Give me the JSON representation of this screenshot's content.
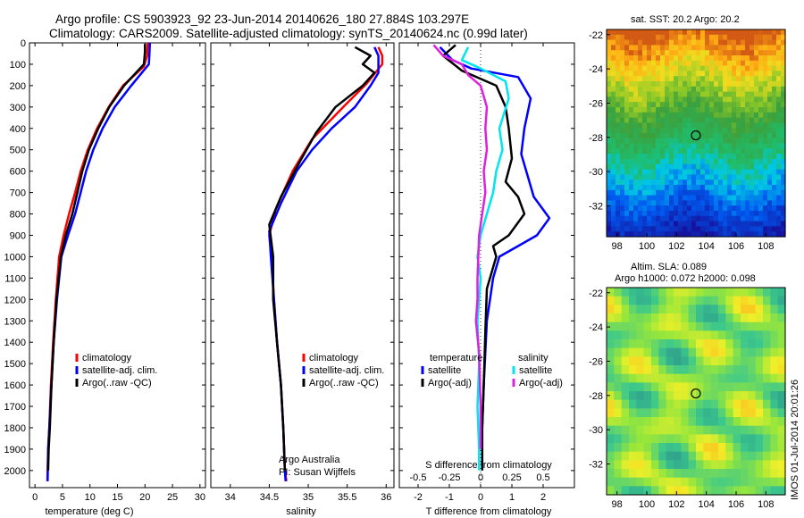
{
  "title": {
    "line1": "Argo profile: CS 5903923_92 23-Jun-2014 20140626_180 27.884S 103.297E",
    "line2": "Climatology: CARS2009. Satellite-adjusted climatology: synTS_20140624.nc (0.99d later)"
  },
  "colors": {
    "climatology": "#ff0000",
    "satellite": "#0000ff",
    "argo": "#000000",
    "satellite_s": "#00e5ee",
    "argo_s": "#e020e0"
  },
  "chart_data": [
    {
      "type": "line",
      "name": "temperature-profile",
      "xlabel": "temperature (deg C)",
      "xlim": [
        -1,
        31
      ],
      "xticks": [
        0,
        5,
        10,
        15,
        20,
        25,
        30
      ],
      "ylim": [
        0,
        2080
      ],
      "yticks": [
        0,
        100,
        200,
        300,
        400,
        500,
        600,
        700,
        800,
        900,
        1000,
        1100,
        1200,
        1300,
        1400,
        1500,
        1600,
        1700,
        1800,
        1900,
        2000
      ],
      "series": [
        {
          "name": "climatology",
          "color": "#ff0000",
          "points": [
            [
              20.5,
              0
            ],
            [
              20.4,
              60
            ],
            [
              19.8,
              110
            ],
            [
              16,
              200
            ],
            [
              13.4,
              300
            ],
            [
              11.3,
              400
            ],
            [
              9.6,
              500
            ],
            [
              8.3,
              600
            ],
            [
              7.3,
              700
            ],
            [
              6.2,
              800
            ],
            [
              5.2,
              900
            ],
            [
              4.4,
              1000
            ],
            [
              3.8,
              1200
            ],
            [
              3.3,
              1400
            ],
            [
              2.9,
              1600
            ],
            [
              2.6,
              1800
            ],
            [
              2.4,
              1900
            ],
            [
              2.25,
              2050
            ]
          ]
        },
        {
          "name": "satellite-adj. clim.",
          "color": "#0000ff",
          "points": [
            [
              20.9,
              0
            ],
            [
              20.8,
              60
            ],
            [
              20.7,
              100
            ],
            [
              17.5,
              200
            ],
            [
              14.5,
              300
            ],
            [
              12.3,
              400
            ],
            [
              10.6,
              500
            ],
            [
              9.3,
              600
            ],
            [
              8.3,
              700
            ],
            [
              7.3,
              800
            ],
            [
              6,
              900
            ],
            [
              4.8,
              1000
            ],
            [
              4,
              1200
            ],
            [
              3.4,
              1400
            ],
            [
              3,
              1600
            ],
            [
              2.6,
              1800
            ],
            [
              2.4,
              1900
            ],
            [
              2.3,
              2050
            ]
          ]
        },
        {
          "name": "Argo(..raw -QC)",
          "color": "#000000",
          "points": [
            [
              20,
              5
            ],
            [
              20,
              40
            ],
            [
              19.8,
              100
            ],
            [
              16.2,
              200
            ],
            [
              13.5,
              300
            ],
            [
              11.5,
              400
            ],
            [
              9.8,
              500
            ],
            [
              8.6,
              600
            ],
            [
              7.7,
              700
            ],
            [
              6.8,
              800
            ],
            [
              5.6,
              900
            ],
            [
              4.7,
              1000
            ],
            [
              3.9,
              1200
            ],
            [
              3.4,
              1400
            ],
            [
              3,
              1600
            ],
            [
              2.7,
              1800
            ],
            [
              2.5,
              1900
            ],
            [
              2.4,
              2000
            ]
          ]
        }
      ],
      "legend": [
        "climatology",
        "satellite-adj. clim.",
        "Argo(..raw -QC)"
      ]
    },
    {
      "type": "line",
      "name": "salinity-profile",
      "xlabel": "salinity",
      "xlim": [
        33.75,
        36.1
      ],
      "xticks": [
        34,
        34.5,
        35,
        35.5,
        36
      ],
      "ticklabels": [
        "34",
        "34.5",
        "35",
        "35.5",
        "36"
      ],
      "ylim": [
        0,
        2080
      ],
      "series": [
        {
          "name": "climatology",
          "color": "#ff0000",
          "points": [
            [
              35.9,
              20
            ],
            [
              35.95,
              60
            ],
            [
              35.95,
              100
            ],
            [
              35.75,
              190
            ],
            [
              35.45,
              300
            ],
            [
              35.05,
              450
            ],
            [
              34.8,
              600
            ],
            [
              34.58,
              780
            ],
            [
              34.5,
              900
            ],
            [
              34.53,
              1000
            ],
            [
              34.56,
              1200
            ],
            [
              34.6,
              1400
            ],
            [
              34.65,
              1600
            ],
            [
              34.68,
              1800
            ],
            [
              34.7,
              2000
            ],
            [
              34.72,
              2050
            ]
          ]
        },
        {
          "name": "satellite-adj. clim.",
          "color": "#0000ff",
          "points": [
            [
              35.85,
              20
            ],
            [
              35.9,
              60
            ],
            [
              35.9,
              140
            ],
            [
              35.8,
              200
            ],
            [
              35.6,
              300
            ],
            [
              35.3,
              400
            ],
            [
              35.05,
              500
            ],
            [
              34.85,
              600
            ],
            [
              34.65,
              750
            ],
            [
              34.5,
              880
            ],
            [
              34.52,
              1000
            ],
            [
              34.56,
              1200
            ],
            [
              34.6,
              1400
            ],
            [
              34.65,
              1600
            ],
            [
              34.68,
              1800
            ],
            [
              34.7,
              2000
            ],
            [
              34.71,
              2050
            ]
          ]
        },
        {
          "name": "Argo(..raw -QC)",
          "color": "#000000",
          "points": [
            [
              35.6,
              20
            ],
            [
              35.8,
              60
            ],
            [
              35.7,
              100
            ],
            [
              35.85,
              140
            ],
            [
              35.7,
              200
            ],
            [
              35.35,
              300
            ],
            [
              35.1,
              420
            ],
            [
              34.9,
              550
            ],
            [
              34.65,
              720
            ],
            [
              34.5,
              850
            ],
            [
              34.55,
              1000
            ],
            [
              34.55,
              1200
            ],
            [
              34.6,
              1400
            ],
            [
              34.65,
              1600
            ],
            [
              34.68,
              1800
            ],
            [
              34.7,
              2000
            ]
          ]
        }
      ],
      "legend": [
        "climatology",
        "satellite-adj. clim.",
        "Argo(..raw -QC)"
      ]
    },
    {
      "type": "line",
      "name": "difference-profile",
      "xlabel": "T difference from climatology",
      "toplabel": "S difference from climatology",
      "xlim": [
        -2.6,
        3
      ],
      "xticks": [
        -2,
        -1,
        0,
        1,
        2
      ],
      "sticks_labels": [
        "-0.5",
        "-0.25",
        "0",
        "0.25",
        "0.5"
      ],
      "sticks_pos": [
        -2,
        -1,
        0,
        1,
        2
      ],
      "ylim": [
        0,
        2080
      ],
      "series": [
        {
          "name": "satellite",
          "group": "temperature",
          "color": "#0000ff",
          "points": [
            [
              -1.3,
              20
            ],
            [
              -0.9,
              80
            ],
            [
              -0.3,
              120
            ],
            [
              1.2,
              160
            ],
            [
              1.6,
              260
            ],
            [
              1.4,
              400
            ],
            [
              1.3,
              520
            ],
            [
              1.5,
              620
            ],
            [
              1.7,
              720
            ],
            [
              2.2,
              820
            ],
            [
              1.8,
              900
            ],
            [
              1.2,
              950
            ],
            [
              0.6,
              1000
            ],
            [
              0.4,
              1100
            ],
            [
              0.2,
              1300
            ],
            [
              0.1,
              1600
            ],
            [
              0.05,
              1800
            ],
            [
              0.05,
              2000
            ]
          ]
        },
        {
          "name": "Argo(-adj)",
          "group": "temperature",
          "color": "#000000",
          "points": [
            [
              -0.8,
              10
            ],
            [
              -1.2,
              60
            ],
            [
              -0.6,
              130
            ],
            [
              0.5,
              200
            ],
            [
              0.8,
              300
            ],
            [
              0.9,
              400
            ],
            [
              1.0,
              540
            ],
            [
              0.8,
              650
            ],
            [
              1.2,
              720
            ],
            [
              1.4,
              800
            ],
            [
              0.9,
              900
            ],
            [
              0.4,
              950
            ],
            [
              0.5,
              1000
            ],
            [
              0.2,
              1150
            ],
            [
              0.15,
              1350
            ],
            [
              0.1,
              1600
            ],
            [
              0.05,
              1800
            ],
            [
              0.05,
              2000
            ]
          ]
        },
        {
          "name": "satellite",
          "group": "salinity",
          "color": "#00e5ee",
          "points": [
            [
              -0.4,
              20
            ],
            [
              -0.6,
              80
            ],
            [
              0,
              120
            ],
            [
              0.8,
              180
            ],
            [
              0.9,
              260
            ],
            [
              0.6,
              400
            ],
            [
              0.7,
              500
            ],
            [
              0.5,
              600
            ],
            [
              0.4,
              700
            ],
            [
              0.2,
              800
            ],
            [
              0,
              900
            ],
            [
              -0.1,
              1000
            ],
            [
              0,
              1100
            ],
            [
              -0.1,
              1300
            ],
            [
              -0.05,
              1500
            ],
            [
              -0.1,
              1700
            ],
            [
              -0.05,
              1900
            ],
            [
              -0.05,
              2000
            ]
          ]
        },
        {
          "name": "Argo(-adj)",
          "group": "salinity",
          "color": "#e020e0",
          "points": [
            [
              -1.5,
              10
            ],
            [
              -1.2,
              60
            ],
            [
              -0.6,
              100
            ],
            [
              -0.4,
              150
            ],
            [
              0,
              200
            ],
            [
              0.2,
              300
            ],
            [
              0.15,
              400
            ],
            [
              0.2,
              500
            ],
            [
              0.1,
              600
            ],
            [
              0.15,
              700
            ],
            [
              0.05,
              800
            ],
            [
              -0.05,
              900
            ],
            [
              -0.1,
              1100
            ],
            [
              -0.1,
              1200
            ],
            [
              -0.15,
              1300
            ],
            [
              -0.05,
              1450
            ],
            [
              0,
              1700
            ],
            [
              0,
              1900
            ]
          ]
        }
      ],
      "legend_temperature": "temperature",
      "legend_salinity": "salinity",
      "legend_items": [
        "satellite",
        "Argo(-adj)",
        "satellite",
        "Argo(-adj)"
      ]
    },
    {
      "type": "heatmap",
      "name": "sst-map",
      "title": "sat. SST: 20.2 Argo: 20.2",
      "xticks": [
        98,
        100,
        102,
        104,
        106,
        108
      ],
      "yticks": [
        -22,
        -24,
        -26,
        -28,
        -30,
        -32
      ],
      "xlim": [
        97.3,
        109.3
      ],
      "ylim": [
        -33.8,
        -21.7
      ],
      "marker": [
        103.297,
        -27.884
      ]
    },
    {
      "type": "heatmap",
      "name": "sla-map",
      "title_line1": "Altim. SLA: 0.089",
      "title_line2": "Argo h1000: 0.072 h2000: 0.098",
      "xticks": [
        98,
        100,
        102,
        104,
        106,
        108
      ],
      "yticks": [
        -22,
        -24,
        -26,
        -28,
        -30,
        -32
      ],
      "xlim": [
        97.3,
        109.3
      ],
      "ylim": [
        -33.8,
        -21.7
      ],
      "marker": [
        103.297,
        -27.884
      ]
    }
  ],
  "annotations": {
    "institution": "Argo Australia",
    "pi": "PI: Susan Wijffels",
    "stamp": "IMOS 01-Jul-2014 20:01:26"
  }
}
